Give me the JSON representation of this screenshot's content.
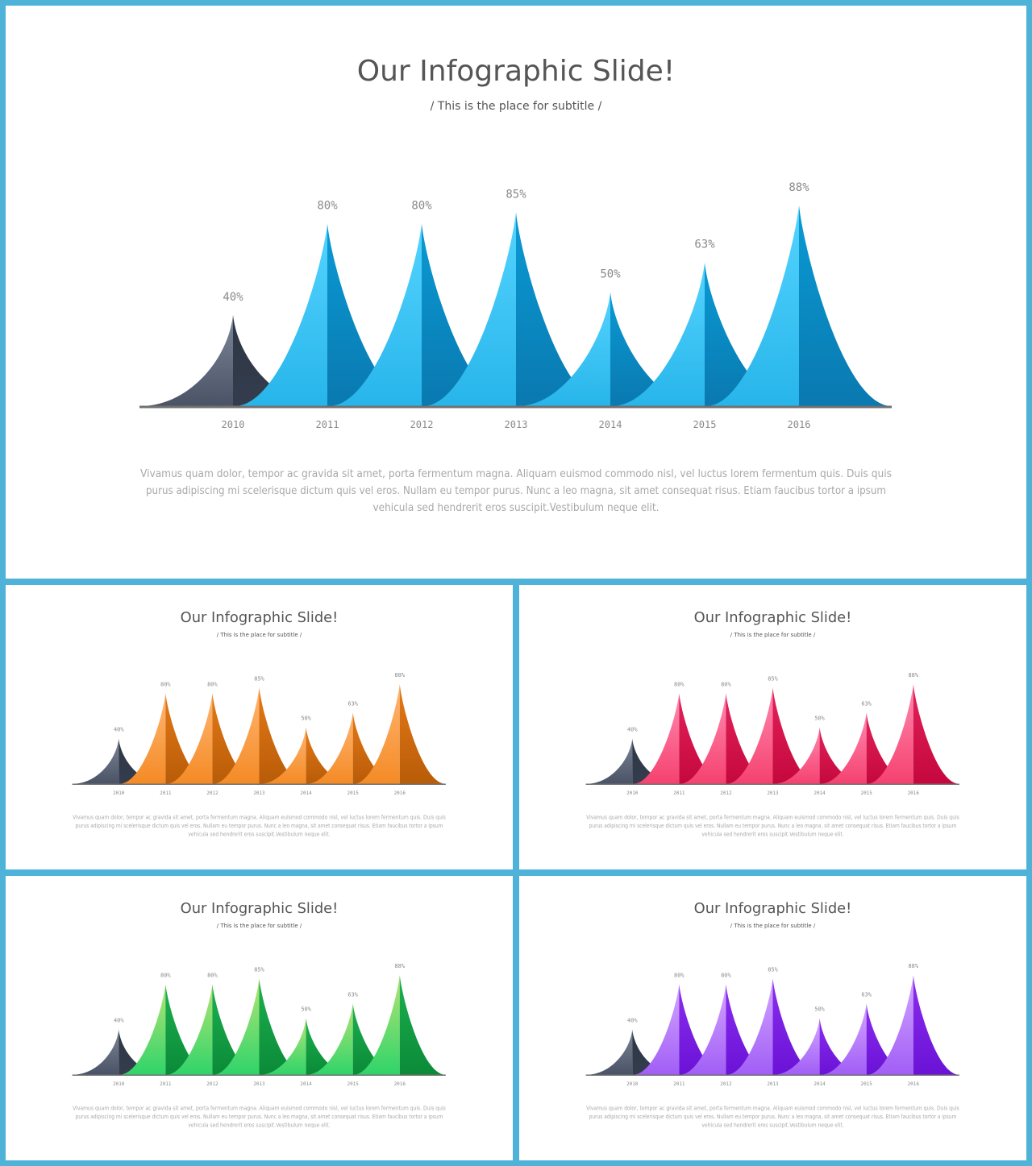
{
  "slide_title": "Our Infographic Slide!",
  "slide_subtitle": "/ This is the place for subtitle /",
  "body_lines": [
    "Vivamus quam dolor, tempor ac gravida sit amet, porta fermentum magna. Aliquam euismod commodo nisl, vel luctus lorem fermentum quis. Duis quis",
    "purus adipiscing mi scelerisque dictum quis vel eros. Nullam eu tempor purus. Nunc a leo magna, sit amet consequat risus. Etiam faucibus tortor a ipsum",
    "vehicula sed hendrerit eros suscipit.Vestibulum neque elit."
  ],
  "first_peak_colors": {
    "light": "#7d8799",
    "dark": "#343d4d"
  },
  "baseline_color": "#707070",
  "slides": [
    {
      "id": "main",
      "scheme": "blue",
      "light": [
        "#55d4ff",
        "#27b5ea"
      ],
      "dark": [
        "#0a9ad4",
        "#0a79b0"
      ]
    },
    {
      "id": "orange",
      "scheme": "orange",
      "light": [
        "#ffb774",
        "#f48a25"
      ],
      "dark": [
        "#e57917",
        "#b85c08"
      ]
    },
    {
      "id": "pink",
      "scheme": "pink",
      "light": [
        "#ff8ab0",
        "#f5416f"
      ],
      "dark": [
        "#e3225a",
        "#c4083e"
      ]
    },
    {
      "id": "green",
      "scheme": "green",
      "light": [
        "#b6e474",
        "#2fd46a"
      ],
      "dark": [
        "#1cb14f",
        "#0b8a38"
      ]
    },
    {
      "id": "purple",
      "scheme": "purple",
      "light": [
        "#d4a6ff",
        "#a15ef6"
      ],
      "dark": [
        "#8b2ef0",
        "#6a12d6"
      ]
    }
  ],
  "chart_data": {
    "type": "area",
    "categories": [
      "2010",
      "2011",
      "2012",
      "2013",
      "2014",
      "2015",
      "2016"
    ],
    "values": [
      40,
      80,
      80,
      85,
      50,
      63,
      88
    ],
    "data_labels": [
      "40%",
      "80%",
      "80%",
      "85%",
      "50%",
      "63%",
      "88%"
    ],
    "ylim": [
      0,
      100
    ],
    "grid": false,
    "legend": "none"
  }
}
